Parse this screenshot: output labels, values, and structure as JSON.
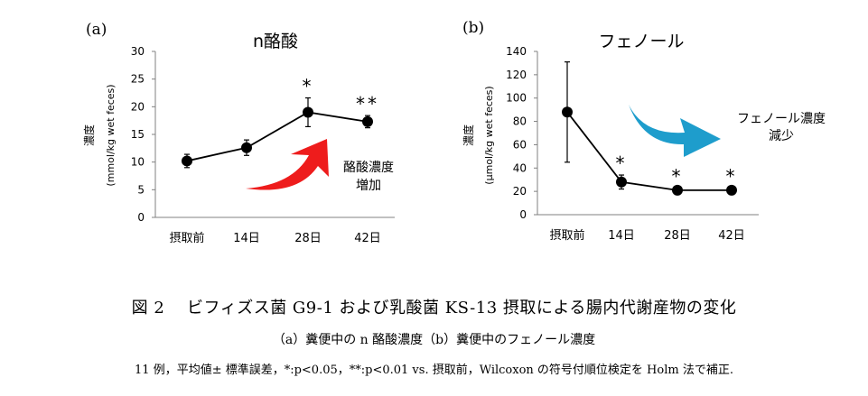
{
  "figure": {
    "caption_title": "図 2　 ビフィズス菌 G9-1 および乳酸菌 KS-13 摂取による腸内代謝産物の変化",
    "caption_sub": "（a）糞便中の n 酪酸濃度（b）糞便中のフェノール濃度",
    "caption_note": "11 例，平均値± 標準誤差，*:p<0.05，**:p<0.01 vs. 摂取前，Wilcoxon の符号付順位検定を Holm 法で補正."
  },
  "colors": {
    "line": "#000000",
    "axis": "#808080",
    "arrow_up": "#ee1c1c",
    "arrow_down": "#1e9dcc"
  },
  "chart_data": [
    {
      "type": "line",
      "panel_label": "(a)",
      "title": "n酪酸",
      "ylabel": "濃度",
      "ylabel_unit": "(mmol/kg wet feces)",
      "categories": [
        "摂取前",
        "14日",
        "28日",
        "42日"
      ],
      "y_ticks": [
        0,
        5,
        10,
        15,
        20,
        25,
        30
      ],
      "ylim": [
        0,
        30
      ],
      "series": [
        {
          "values": [
            10.2,
            12.6,
            19.0,
            17.3
          ],
          "errors": [
            1.2,
            1.4,
            2.6,
            1.1
          ],
          "significance": [
            "",
            "",
            "*",
            "**"
          ]
        }
      ],
      "annotation": {
        "text_line1": "酪酸濃度",
        "text_line2": "増加",
        "arrow": "up"
      }
    },
    {
      "type": "line",
      "panel_label": "(b)",
      "title": "フェノール",
      "ylabel": "濃度",
      "ylabel_unit": "(µmol/kg wet feces)",
      "categories": [
        "摂取前",
        "14日",
        "28日",
        "42日"
      ],
      "y_ticks": [
        0,
        20,
        40,
        60,
        80,
        100,
        120,
        140
      ],
      "ylim": [
        0,
        140
      ],
      "series": [
        {
          "values": [
            88.0,
            28.0,
            21.0,
            21.0
          ],
          "errors": [
            43.0,
            6.0,
            2.0,
            2.0
          ],
          "significance": [
            "",
            "*",
            "*",
            "*"
          ]
        }
      ],
      "annotation": {
        "text_line1": "フェノール濃度",
        "text_line2": "減少",
        "arrow": "down"
      }
    }
  ]
}
